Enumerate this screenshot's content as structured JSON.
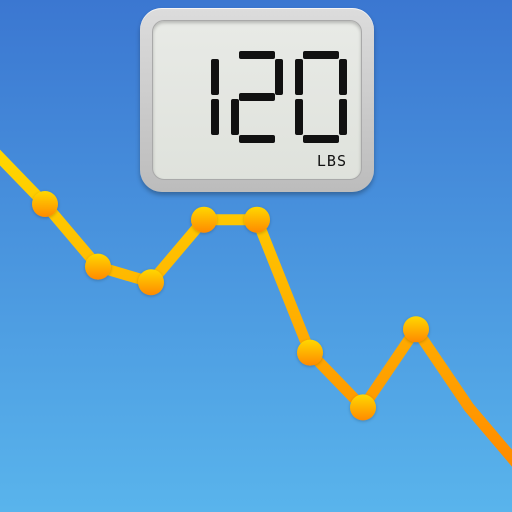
{
  "scale": {
    "weight": "120",
    "unit": "LBS"
  },
  "chart_data": {
    "type": "line",
    "x": [
      0,
      1,
      2,
      3,
      4,
      5,
      6,
      7,
      8,
      9,
      10
    ],
    "y": [
      4.1,
      3.4,
      2.6,
      2.4,
      3.2,
      3.2,
      1.5,
      0.8,
      1.8,
      0.8,
      0
    ],
    "xlabel": "",
    "ylabel": "",
    "ylim": [
      0,
      4.5
    ],
    "grid": false
  },
  "colors": {
    "background_top": "#3b77d1",
    "background_bottom": "#59b4ec",
    "line_top": "#ffd800",
    "line_bottom": "#ff8a00",
    "lcd_text": "#111111"
  }
}
